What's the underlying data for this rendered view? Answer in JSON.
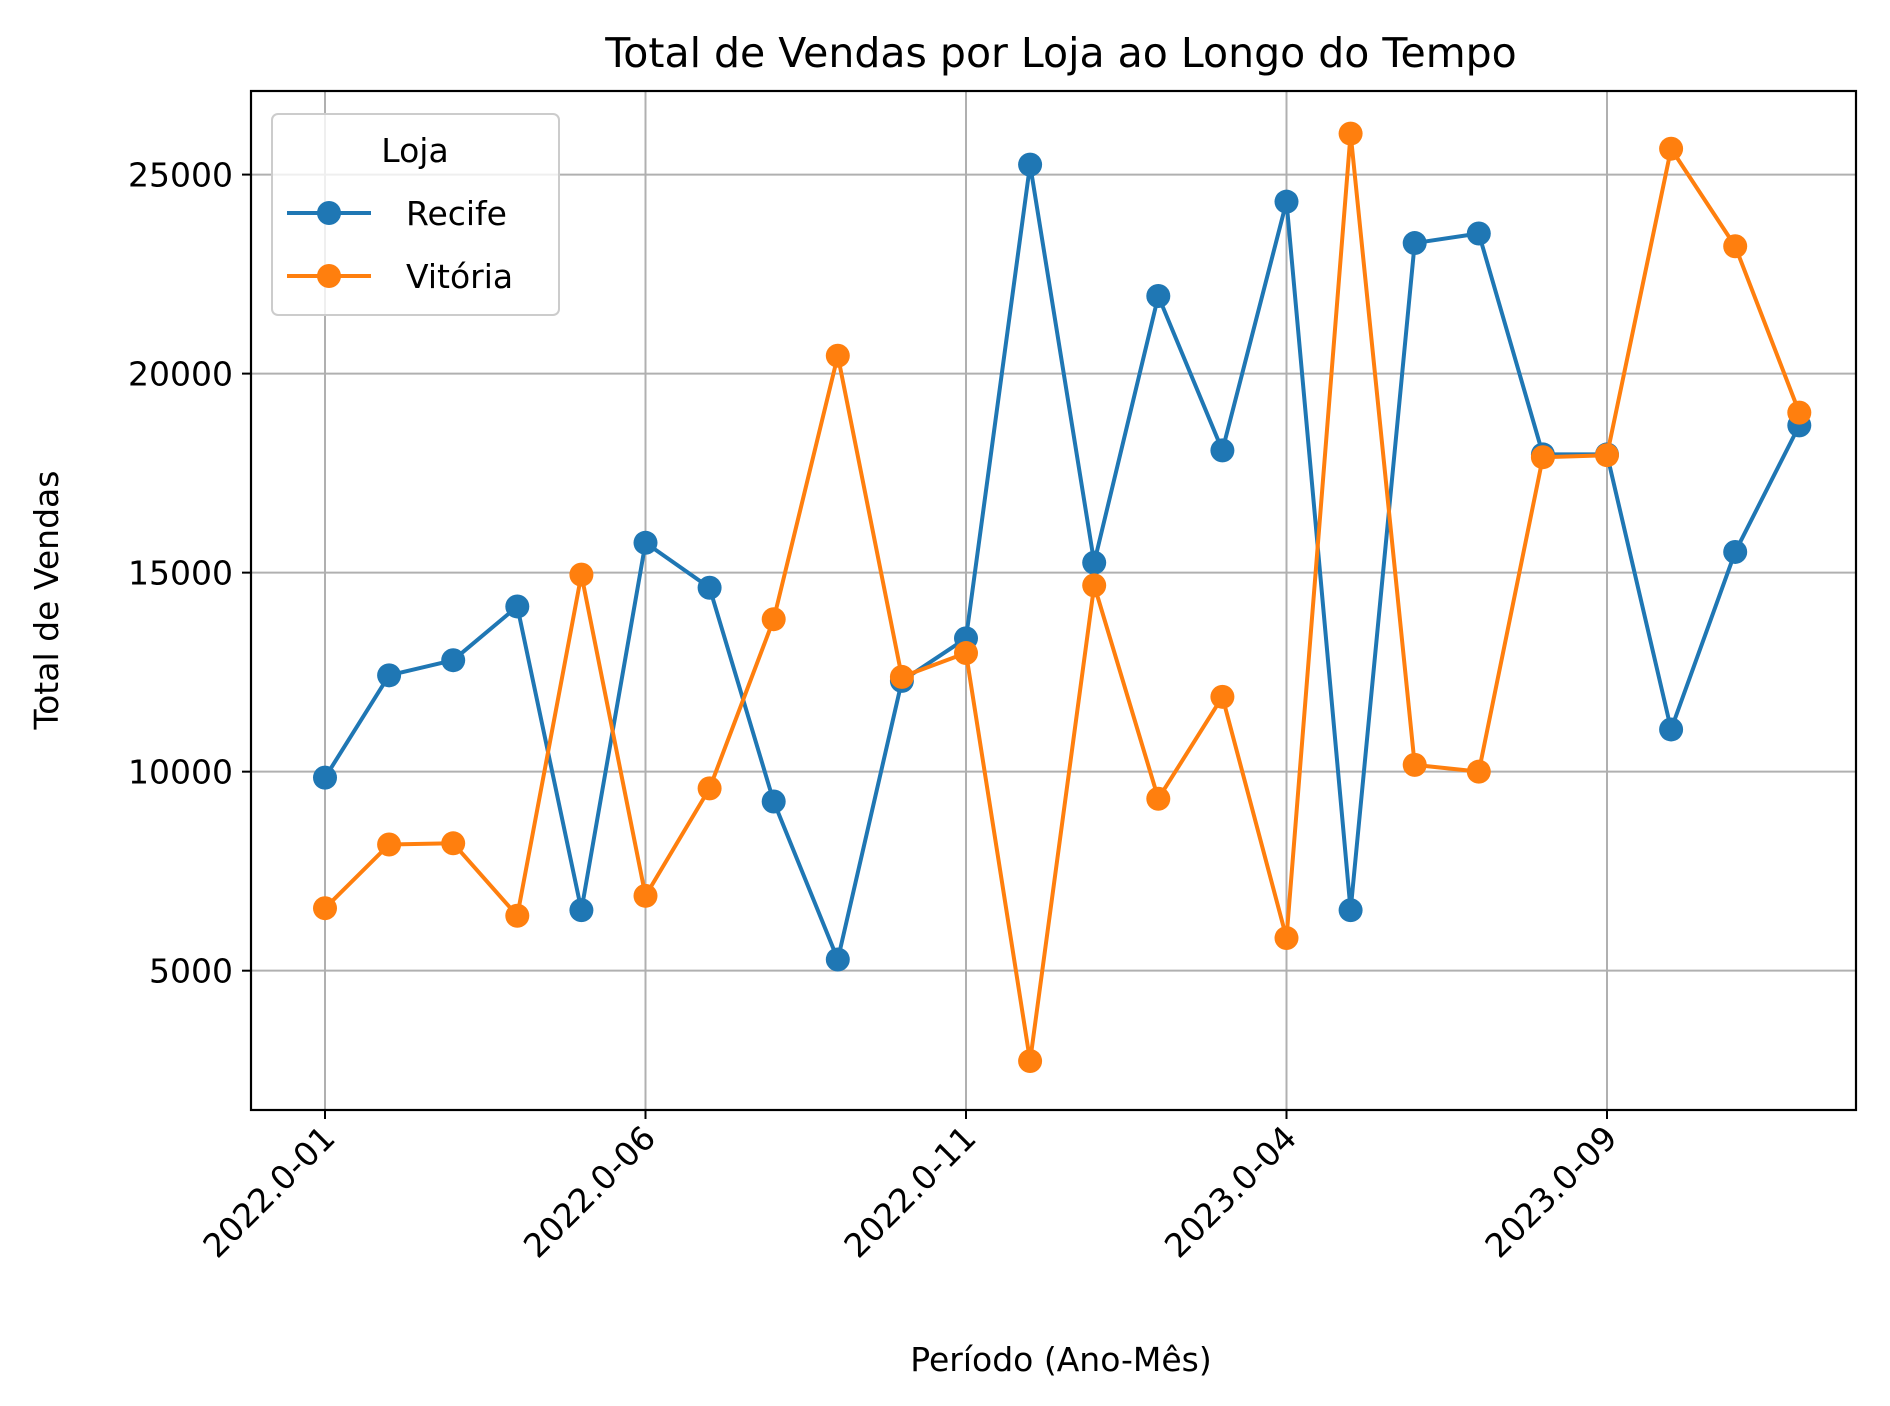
{
  "chart_data": {
    "type": "line",
    "title": "Total de Vendas por Loja ao Longo do Tempo",
    "xlabel": "Período (Ano-Mês)",
    "ylabel": "Total de Vendas",
    "legend_title": "Loja",
    "legend_position": "upper-left",
    "grid": true,
    "ylim": [
      1500,
      27100
    ],
    "yticks": [
      5000,
      10000,
      15000,
      20000,
      25000
    ],
    "categories": [
      "2022.0-01",
      "2022.0-02",
      "2022.0-03",
      "2022.0-04",
      "2022.0-05",
      "2022.0-06",
      "2022.0-07",
      "2022.0-08",
      "2022.0-09",
      "2022.0-10",
      "2022.0-11",
      "2022.0-12",
      "2023.0-01",
      "2023.0-02",
      "2023.0-03",
      "2023.0-04",
      "2023.0-05",
      "2023.0-06",
      "2023.0-07",
      "2023.0-08",
      "2023.0-09",
      "2023.0-10",
      "2023.0-11",
      "2023.0-12"
    ],
    "xticks_shown": [
      "2022.0-01",
      "2022.0-06",
      "2022.0-11",
      "2023.0-04",
      "2023.0-09"
    ],
    "series": [
      {
        "name": "Recife",
        "color": "#1f77b4",
        "values": [
          9850,
          12420,
          12800,
          14150,
          6520,
          15750,
          14620,
          9250,
          5280,
          12280,
          13350,
          25250,
          15250,
          21950,
          18070,
          24320,
          6520,
          23280,
          23520,
          17970,
          17970,
          11060,
          15520,
          18700
        ]
      },
      {
        "name": "Vitória",
        "color": "#ff7f0e",
        "values": [
          6570,
          8170,
          8200,
          6380,
          14950,
          6880,
          9580,
          13830,
          20450,
          12380,
          12980,
          2730,
          14680,
          9320,
          11880,
          5820,
          26030,
          10170,
          10000,
          17900,
          17950,
          25650,
          23200,
          19020
        ]
      }
    ]
  }
}
